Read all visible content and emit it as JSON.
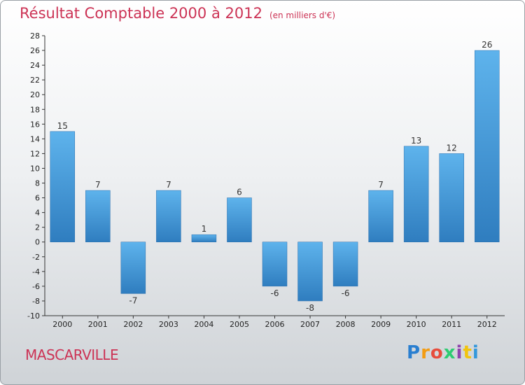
{
  "header": {
    "title": "Résultat Comptable 2000 à 2012",
    "subtitle": "(en milliers d'€)"
  },
  "footer": {
    "commune": "MASCARVILLE",
    "logo_letters": [
      "P",
      "r",
      "o",
      "x",
      "i",
      "t",
      "i"
    ]
  },
  "colors": {
    "bar_light": "#5eb3ec",
    "bar_dark": "#2f7dbf",
    "accent": "#cc3355"
  },
  "chart_data": {
    "type": "bar",
    "title": "Résultat Comptable 2000 à 2012",
    "subtitle": "(en milliers d'€)",
    "categories": [
      "2000",
      "2001",
      "2002",
      "2003",
      "2004",
      "2005",
      "2006",
      "2007",
      "2008",
      "2009",
      "2010",
      "2011",
      "2012"
    ],
    "values": [
      15,
      7,
      -7,
      7,
      1,
      6,
      -6,
      -8,
      -6,
      7,
      13,
      12,
      26
    ],
    "ylim": [
      -10,
      28
    ],
    "yticks": [
      -10,
      -8,
      -6,
      -4,
      -2,
      0,
      2,
      4,
      6,
      8,
      10,
      12,
      14,
      16,
      18,
      20,
      22,
      24,
      26,
      28
    ],
    "xlabel": "",
    "ylabel": "",
    "grid": false,
    "legend": "none"
  }
}
